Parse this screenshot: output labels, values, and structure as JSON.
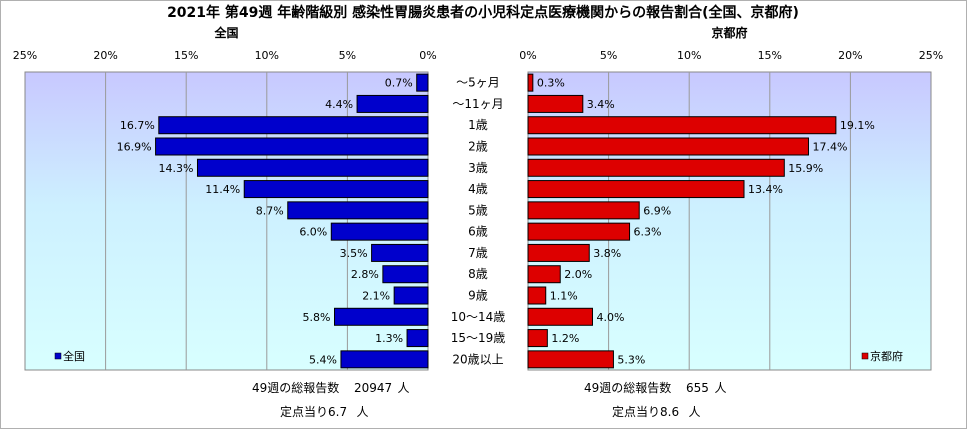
{
  "chart_data": {
    "type": "bar",
    "title": "2021年 第49週 年齢階級別 感染性胃腸炎患者の小児科定点医療機関からの報告割合(全国、京都府)",
    "categories": [
      "～5ヶ月",
      "～11ヶ月",
      "1歳",
      "2歳",
      "3歳",
      "4歳",
      "5歳",
      "6歳",
      "7歳",
      "8歳",
      "9歳",
      "10～14歳",
      "15～19歳",
      "20歳以上"
    ],
    "series": [
      {
        "name": "全国",
        "panel_title": "全国",
        "color": "#0000cc",
        "values": [
          0.7,
          4.4,
          16.7,
          16.9,
          14.3,
          11.4,
          8.7,
          6.0,
          3.5,
          2.8,
          2.1,
          5.8,
          1.3,
          5.4
        ],
        "value_labels": [
          "0.7%",
          "4.4%",
          "16.7%",
          "16.9%",
          "14.3%",
          "11.4%",
          "8.7%",
          "6.0%",
          "3.5%",
          "2.8%",
          "2.1%",
          "5.8%",
          "1.3%",
          "5.4%"
        ],
        "legend": "全国",
        "footer": [
          {
            "label": "49週の総報告数",
            "value": "20947",
            "unit": "人"
          },
          {
            "label": "定点当り",
            "value": "6.7",
            "unit": "人"
          }
        ]
      },
      {
        "name": "京都府",
        "panel_title": "京都府",
        "color": "#dd0000",
        "values": [
          0.3,
          3.4,
          19.1,
          17.4,
          15.9,
          13.4,
          6.9,
          6.3,
          3.8,
          2.0,
          1.1,
          4.0,
          1.2,
          5.3
        ],
        "value_labels": [
          "0.3%",
          "3.4%",
          "19.1%",
          "17.4%",
          "15.9%",
          "13.4%",
          "6.9%",
          "6.3%",
          "3.8%",
          "2.0%",
          "1.1%",
          "4.0%",
          "1.2%",
          "5.3%"
        ],
        "legend": "京都府",
        "footer": [
          {
            "label": "49週の総報告数",
            "value": "655",
            "unit": "人"
          },
          {
            "label": "定点当り",
            "value": "8.6",
            "unit": "人"
          }
        ]
      }
    ],
    "xlim": [
      0,
      25
    ],
    "ticks": [
      0,
      5,
      10,
      15,
      20,
      25
    ],
    "tick_labels": [
      "0%",
      "5%",
      "10%",
      "15%",
      "20%",
      "25%"
    ],
    "grid": true,
    "legend_placement": "bottom-left (全国) / bottom-right (京都府)"
  }
}
